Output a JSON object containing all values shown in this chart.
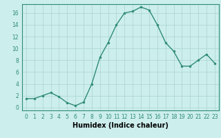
{
  "x": [
    0,
    1,
    2,
    3,
    4,
    5,
    6,
    7,
    8,
    9,
    10,
    11,
    12,
    13,
    14,
    15,
    16,
    17,
    18,
    19,
    20,
    21,
    22,
    23
  ],
  "y": [
    1.5,
    1.5,
    2.0,
    2.5,
    1.8,
    0.8,
    0.3,
    0.9,
    4.0,
    8.5,
    11.0,
    14.0,
    16.0,
    16.3,
    17.0,
    16.5,
    14.0,
    11.0,
    9.5,
    7.0,
    7.0,
    8.0,
    9.0,
    7.5
  ],
  "line_color": "#2e8b74",
  "marker": "o",
  "marker_size": 2.0,
  "line_width": 1.0,
  "bg_color": "#cceeed",
  "grid_color": "#aad4d0",
  "xlabel": "Humidex (Indice chaleur)",
  "xlabel_fontsize": 7,
  "ylim": [
    -0.5,
    17.5
  ],
  "xlim": [
    -0.5,
    23.5
  ],
  "yticks": [
    0,
    2,
    4,
    6,
    8,
    10,
    12,
    14,
    16
  ],
  "xtick_fontsize": 5.5,
  "ytick_fontsize": 5.5,
  "tick_color": "#2e8b74",
  "axis_color": "#2e8b74",
  "spine_color": "#2e8b74"
}
